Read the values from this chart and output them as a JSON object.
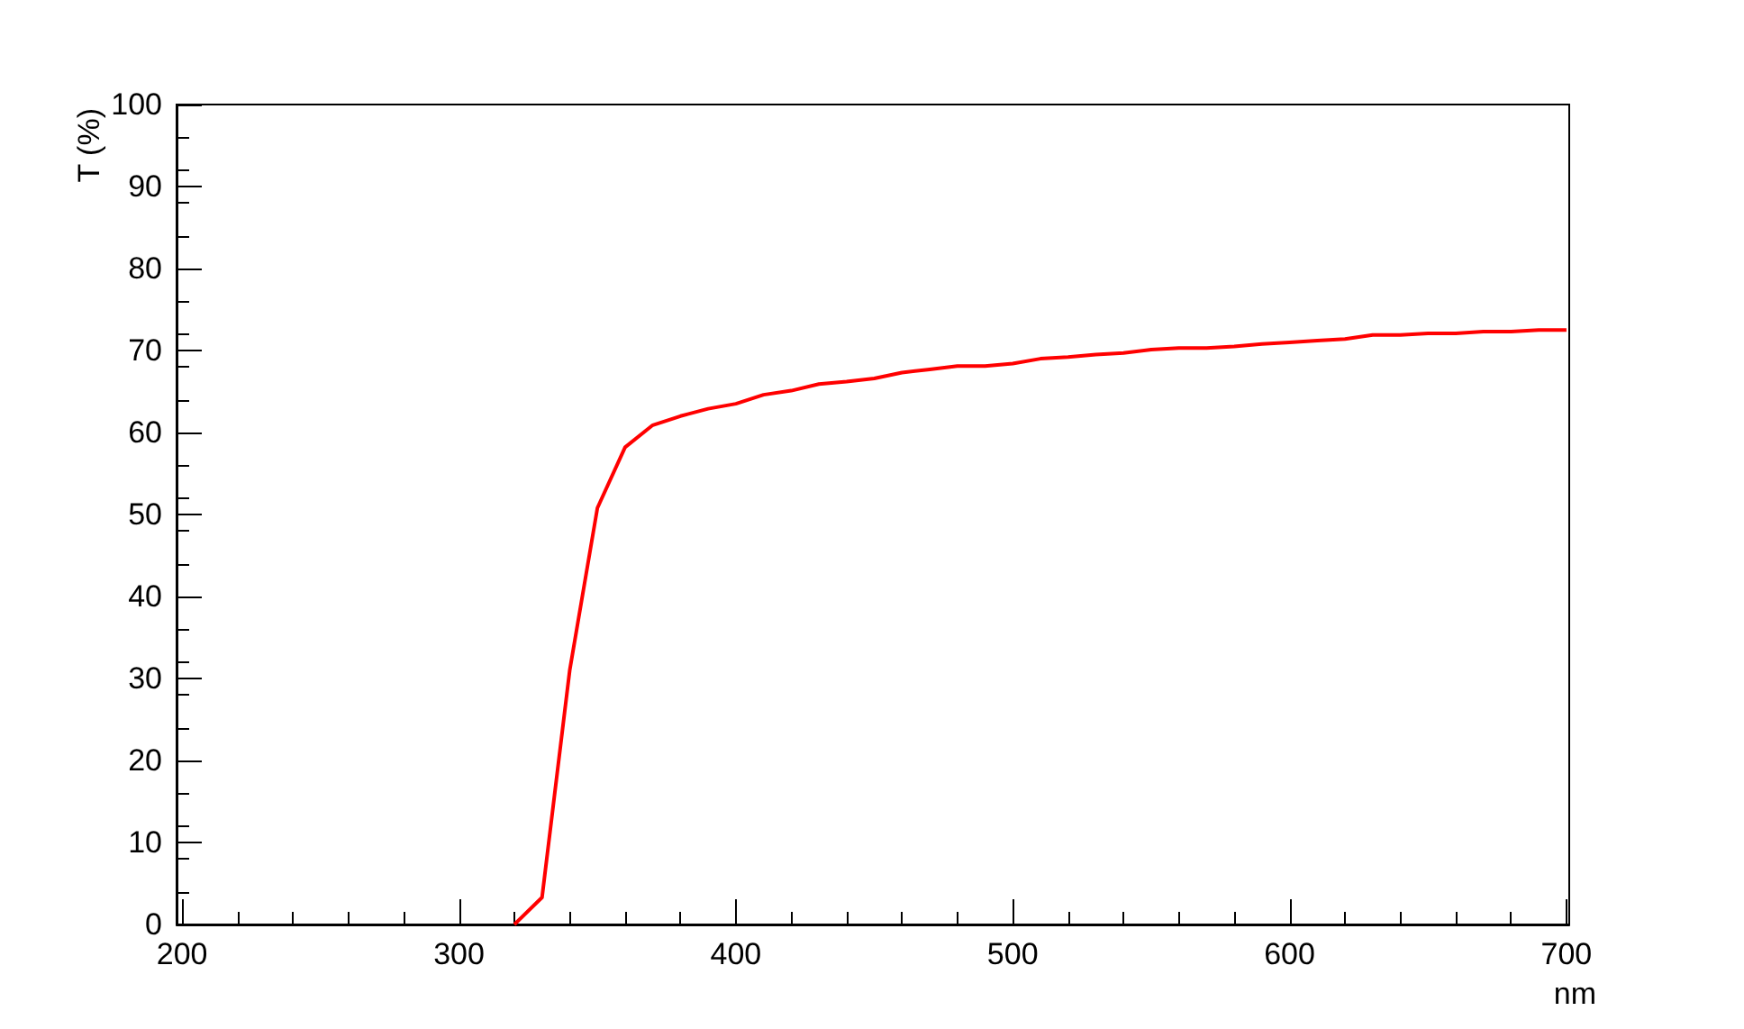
{
  "chart_data": {
    "type": "line",
    "xlabel": "nm",
    "ylabel": "T (%)",
    "x": [
      320,
      330,
      340,
      350,
      360,
      370,
      380,
      390,
      400,
      410,
      420,
      430,
      440,
      450,
      460,
      470,
      480,
      490,
      500,
      510,
      520,
      530,
      540,
      550,
      560,
      570,
      580,
      590,
      600,
      610,
      620,
      630,
      640,
      650,
      660,
      670,
      680,
      690,
      700
    ],
    "series": [
      {
        "color": "#ff0000",
        "values": [
          0,
          3.3,
          31,
          50.8,
          58.2,
          60.9,
          62,
          62.9,
          63.5,
          64.6,
          65.1,
          65.9,
          66.2,
          66.6,
          67.3,
          67.7,
          68.1,
          68.1,
          68.4,
          69,
          69.2,
          69.5,
          69.7,
          70.1,
          70.3,
          70.3,
          70.5,
          70.8,
          71,
          71.2,
          71.4,
          71.9,
          71.9,
          72.1,
          72.1,
          72.3,
          72.3,
          72.5,
          72.5
        ]
      }
    ],
    "xlim": [
      198,
      701
    ],
    "xticks": [
      200,
      300,
      400,
      500,
      600,
      700
    ],
    "ylim": [
      0,
      100
    ],
    "yticks": [
      0,
      10,
      20,
      30,
      40,
      50,
      60,
      70,
      80,
      90,
      100
    ],
    "grid": false,
    "marker": "none",
    "line_style": "solid"
  }
}
